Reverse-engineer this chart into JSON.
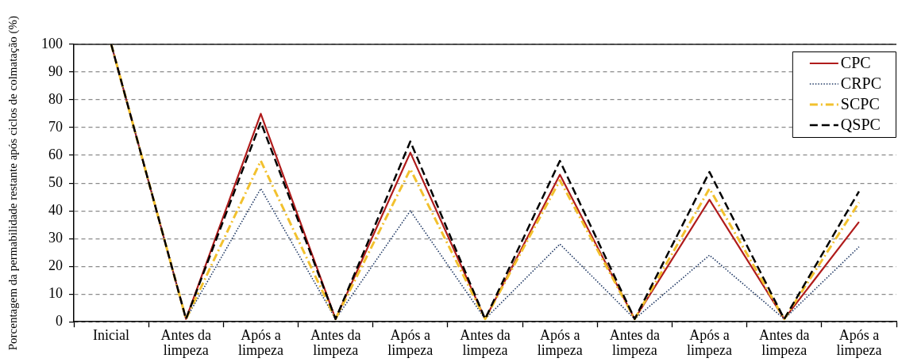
{
  "chart_data": {
    "type": "line",
    "ylabel": "Porcentagem da permabilidade restante após ciclos de colmatação (%)",
    "categories": [
      "Inicial",
      "Antes da limpeza",
      "Após a limpeza",
      "Antes da limpeza",
      "Após a limpeza",
      "Antes da limpeza",
      "Após a limpeza",
      "Antes da limpeza",
      "Após a limpeza",
      "Antes da limpeza",
      "Após a limpeza"
    ],
    "ylim": [
      0,
      100
    ],
    "yticks": [
      0,
      10,
      20,
      30,
      40,
      50,
      60,
      70,
      80,
      90,
      100
    ],
    "grid": "y",
    "legend": "top right",
    "marker": "none",
    "series": [
      {
        "name": "CPC",
        "color": "#b01c1c",
        "line_style": "solid",
        "values": [
          100,
          1,
          75,
          1,
          61,
          1,
          53,
          1,
          44,
          1,
          36
        ]
      },
      {
        "name": "CRPC",
        "color": "#1f3864",
        "line_style": "dotted",
        "values": [
          100,
          1,
          48,
          1,
          40,
          1,
          28,
          1,
          24,
          1,
          27
        ]
      },
      {
        "name": "SCPC",
        "color": "#f2c12e",
        "line_style": "dashdot",
        "values": [
          100,
          1,
          58,
          1,
          55,
          1,
          51,
          1,
          48,
          1,
          43
        ]
      },
      {
        "name": "QSPC",
        "color": "#000000",
        "line_style": "dashed",
        "values": [
          100,
          1,
          72,
          1,
          65,
          1,
          58,
          1,
          54,
          1,
          47
        ]
      }
    ]
  }
}
